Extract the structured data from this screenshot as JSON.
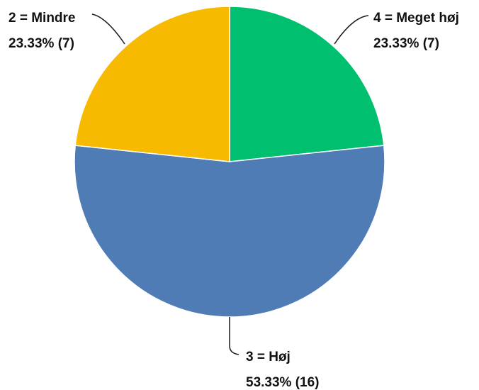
{
  "chart_data": {
    "type": "pie",
    "start_angle": "12 o'clock",
    "direction": "clockwise",
    "slices": [
      {
        "key": "meget",
        "label": "4 = Meget høj",
        "value": 7,
        "percent": "23.33%",
        "value_text": "23.33% (7)",
        "color": "#00BF6F"
      },
      {
        "key": "hoj",
        "label": "3 = Høj",
        "value": 16,
        "percent": "53.33%",
        "value_text": "53.33% (16)",
        "color": "#507CB6"
      },
      {
        "key": "mindre",
        "label": "2 = Mindre",
        "value": 7,
        "percent": "23.33%",
        "value_text": "23.33% (7)",
        "color": "#F7BA00"
      }
    ]
  }
}
